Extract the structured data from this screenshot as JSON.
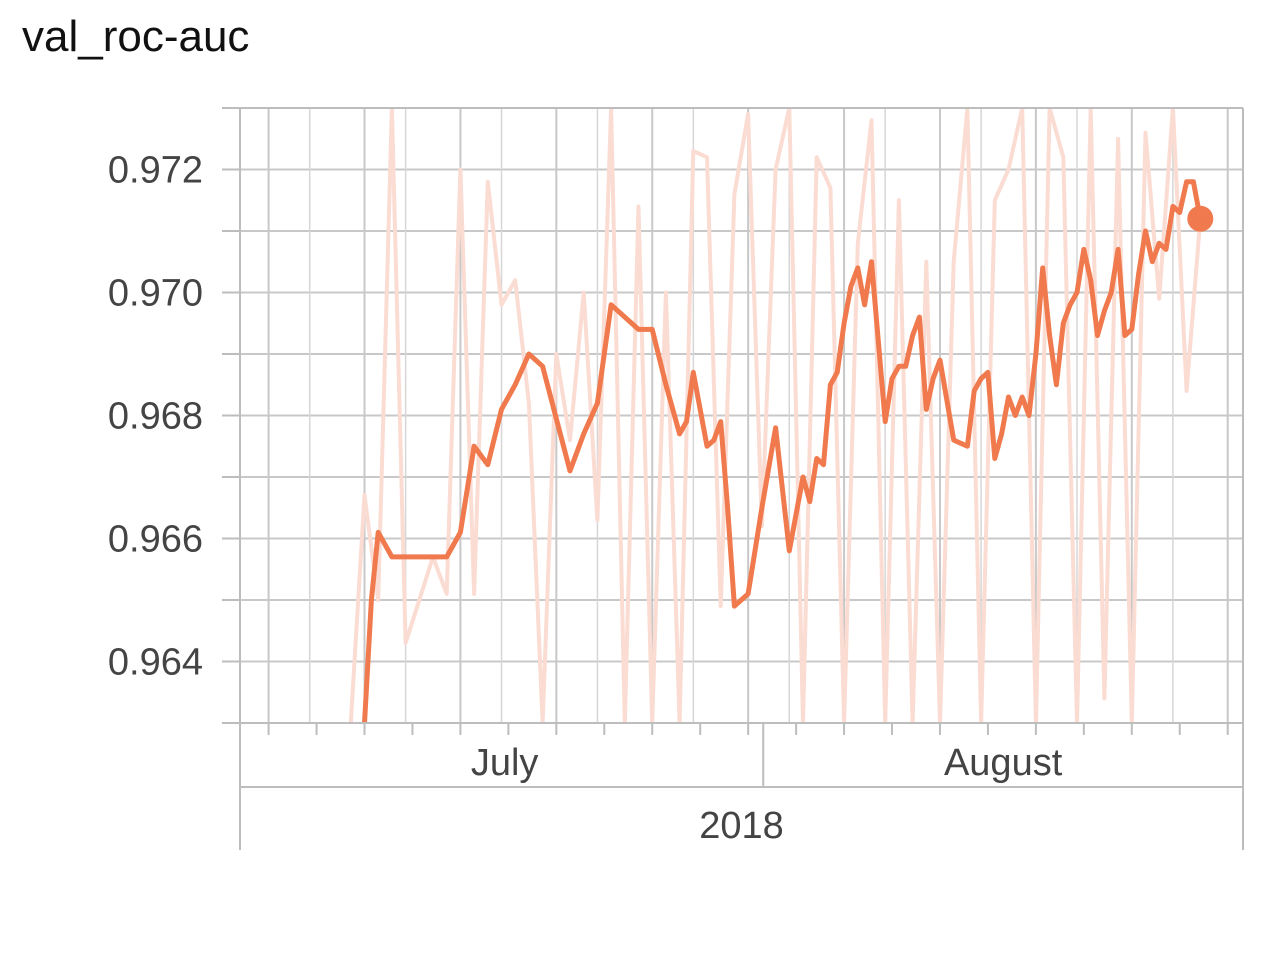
{
  "chart_data": {
    "type": "line",
    "title": "val_roc-auc",
    "xlabel": "",
    "ylabel": "",
    "ylim": [
      0.963,
      0.973
    ],
    "y_ticks": [
      "0.964",
      "0.966",
      "0.968",
      "0.970",
      "0.972"
    ],
    "x_range": [
      "2018-06-27",
      "2018-09-02"
    ],
    "x_axis": {
      "months": [
        "July",
        "August"
      ],
      "year": "2018"
    },
    "grid": true,
    "colors": {
      "smoothed": "#f07a4d",
      "raw": "#fadcd2",
      "grid": "#c8c8c8",
      "axis": "#bdbdbd"
    },
    "series": [
      {
        "name": "",
        "style": "smoothed",
        "x": [
          "2018-07-02",
          "2018-07-02",
          "2018-07-03",
          "2018-07-04",
          "2018-07-05",
          "2018-07-07",
          "2018-07-08",
          "2018-07-09",
          "2018-07-10",
          "2018-07-11",
          "2018-07-12",
          "2018-07-13",
          "2018-07-14",
          "2018-07-15",
          "2018-07-17",
          "2018-07-18",
          "2018-07-19",
          "2018-07-20",
          "2018-07-22",
          "2018-07-23",
          "2018-07-24",
          "2018-07-25",
          "2018-07-25",
          "2018-07-26",
          "2018-07-27",
          "2018-07-27",
          "2018-07-28",
          "2018-07-28",
          "2018-07-29",
          "2018-07-30",
          "2018-07-31",
          "2018-08-01",
          "2018-08-02",
          "2018-08-03",
          "2018-08-03",
          "2018-08-04",
          "2018-08-04",
          "2018-08-05",
          "2018-08-05",
          "2018-08-06",
          "2018-08-06",
          "2018-08-07",
          "2018-08-07",
          "2018-08-08",
          "2018-08-09",
          "2018-08-09",
          "2018-08-10",
          "2018-08-10",
          "2018-08-11",
          "2018-08-11",
          "2018-08-12",
          "2018-08-12",
          "2018-08-13",
          "2018-08-14",
          "2018-08-15",
          "2018-08-15",
          "2018-08-16",
          "2018-08-16",
          "2018-08-17",
          "2018-08-17",
          "2018-08-18",
          "2018-08-18",
          "2018-08-19",
          "2018-08-19",
          "2018-08-20",
          "2018-08-20",
          "2018-08-21",
          "2018-08-21",
          "2018-08-22",
          "2018-08-22",
          "2018-08-23",
          "2018-08-23",
          "2018-08-24",
          "2018-08-24",
          "2018-08-25",
          "2018-08-25",
          "2018-08-26",
          "2018-08-26",
          "2018-08-27",
          "2018-08-27",
          "2018-08-28",
          "2018-08-28",
          "2018-08-29",
          "2018-08-29",
          "2018-08-30",
          "2018-08-30",
          "2018-08-31",
          "2018-08-31",
          "2018-09-01"
        ],
        "y": [
          0.963,
          0.965,
          0.9661,
          0.9657,
          0.9657,
          0.9657,
          0.9657,
          0.9661,
          0.9675,
          0.9672,
          0.9681,
          0.9685,
          0.969,
          0.9688,
          0.9671,
          0.9677,
          0.9682,
          0.9698,
          0.9694,
          0.9694,
          0.9685,
          0.9677,
          0.9679,
          0.9687,
          0.9675,
          0.9676,
          0.9679,
          0.9665,
          0.9649,
          0.9651,
          0.9665,
          0.9678,
          0.9658,
          0.967,
          0.9666,
          0.9673,
          0.9672,
          0.9685,
          0.9687,
          0.9695,
          0.9701,
          0.9704,
          0.9698,
          0.9705,
          0.9679,
          0.9686,
          0.9688,
          0.9688,
          0.9693,
          0.9696,
          0.9681,
          0.9686,
          0.9689,
          0.9676,
          0.9675,
          0.9684,
          0.9686,
          0.9687,
          0.9673,
          0.9677,
          0.9683,
          0.968,
          0.9683,
          0.968,
          0.969,
          0.9704,
          0.9693,
          0.9685,
          0.9695,
          0.9698,
          0.97,
          0.9707,
          0.9702,
          0.9693,
          0.9697,
          0.97,
          0.9707,
          0.9693,
          0.9694,
          0.9703,
          0.971,
          0.9705,
          0.9708,
          0.9707,
          0.9714,
          0.9713,
          0.9718,
          0.9718,
          0.9712
        ]
      }
    ],
    "raw_series": {
      "x": [
        "2018-07-01",
        "2018-07-02",
        "2018-07-03",
        "2018-07-04",
        "2018-07-05",
        "2018-07-06",
        "2018-07-07",
        "2018-07-08",
        "2018-07-09",
        "2018-07-10",
        "2018-07-11",
        "2018-07-12",
        "2018-07-13",
        "2018-07-14",
        "2018-07-15",
        "2018-07-16",
        "2018-07-17",
        "2018-07-18",
        "2018-07-19",
        "2018-07-20",
        "2018-07-21",
        "2018-07-22",
        "2018-07-23",
        "2018-07-24",
        "2018-07-25",
        "2018-07-26",
        "2018-07-27",
        "2018-07-28",
        "2018-07-29",
        "2018-07-30",
        "2018-07-31",
        "2018-08-01",
        "2018-08-02",
        "2018-08-03",
        "2018-08-04",
        "2018-08-05",
        "2018-08-06",
        "2018-08-07",
        "2018-08-08",
        "2018-08-09",
        "2018-08-10",
        "2018-08-11",
        "2018-08-12",
        "2018-08-13",
        "2018-08-14",
        "2018-08-15",
        "2018-08-16",
        "2018-08-17",
        "2018-08-18",
        "2018-08-19",
        "2018-08-20",
        "2018-08-21",
        "2018-08-22",
        "2018-08-23",
        "2018-08-24",
        "2018-08-25",
        "2018-08-26",
        "2018-08-27",
        "2018-08-28",
        "2018-08-29",
        "2018-08-30",
        "2018-08-31",
        "2018-09-01"
      ],
      "y": [
        0.963,
        0.9667,
        0.965,
        0.973,
        0.9643,
        0.965,
        0.9657,
        0.9651,
        0.972,
        0.9651,
        0.9718,
        0.9698,
        0.9702,
        0.9682,
        0.963,
        0.969,
        0.9676,
        0.97,
        0.9663,
        0.973,
        0.963,
        0.9714,
        0.963,
        0.97,
        0.963,
        0.9723,
        0.9722,
        0.9649,
        0.9716,
        0.9729,
        0.9662,
        0.972,
        0.973,
        0.963,
        0.9722,
        0.9717,
        0.963,
        0.9708,
        0.9728,
        0.963,
        0.9715,
        0.963,
        0.9705,
        0.963,
        0.9705,
        0.973,
        0.963,
        0.9715,
        0.972,
        0.973,
        0.963,
        0.973,
        0.9722,
        0.963,
        0.973,
        0.9634,
        0.9725,
        0.963,
        0.9726,
        0.9699,
        0.973,
        0.9684,
        0.9712
      ]
    }
  }
}
